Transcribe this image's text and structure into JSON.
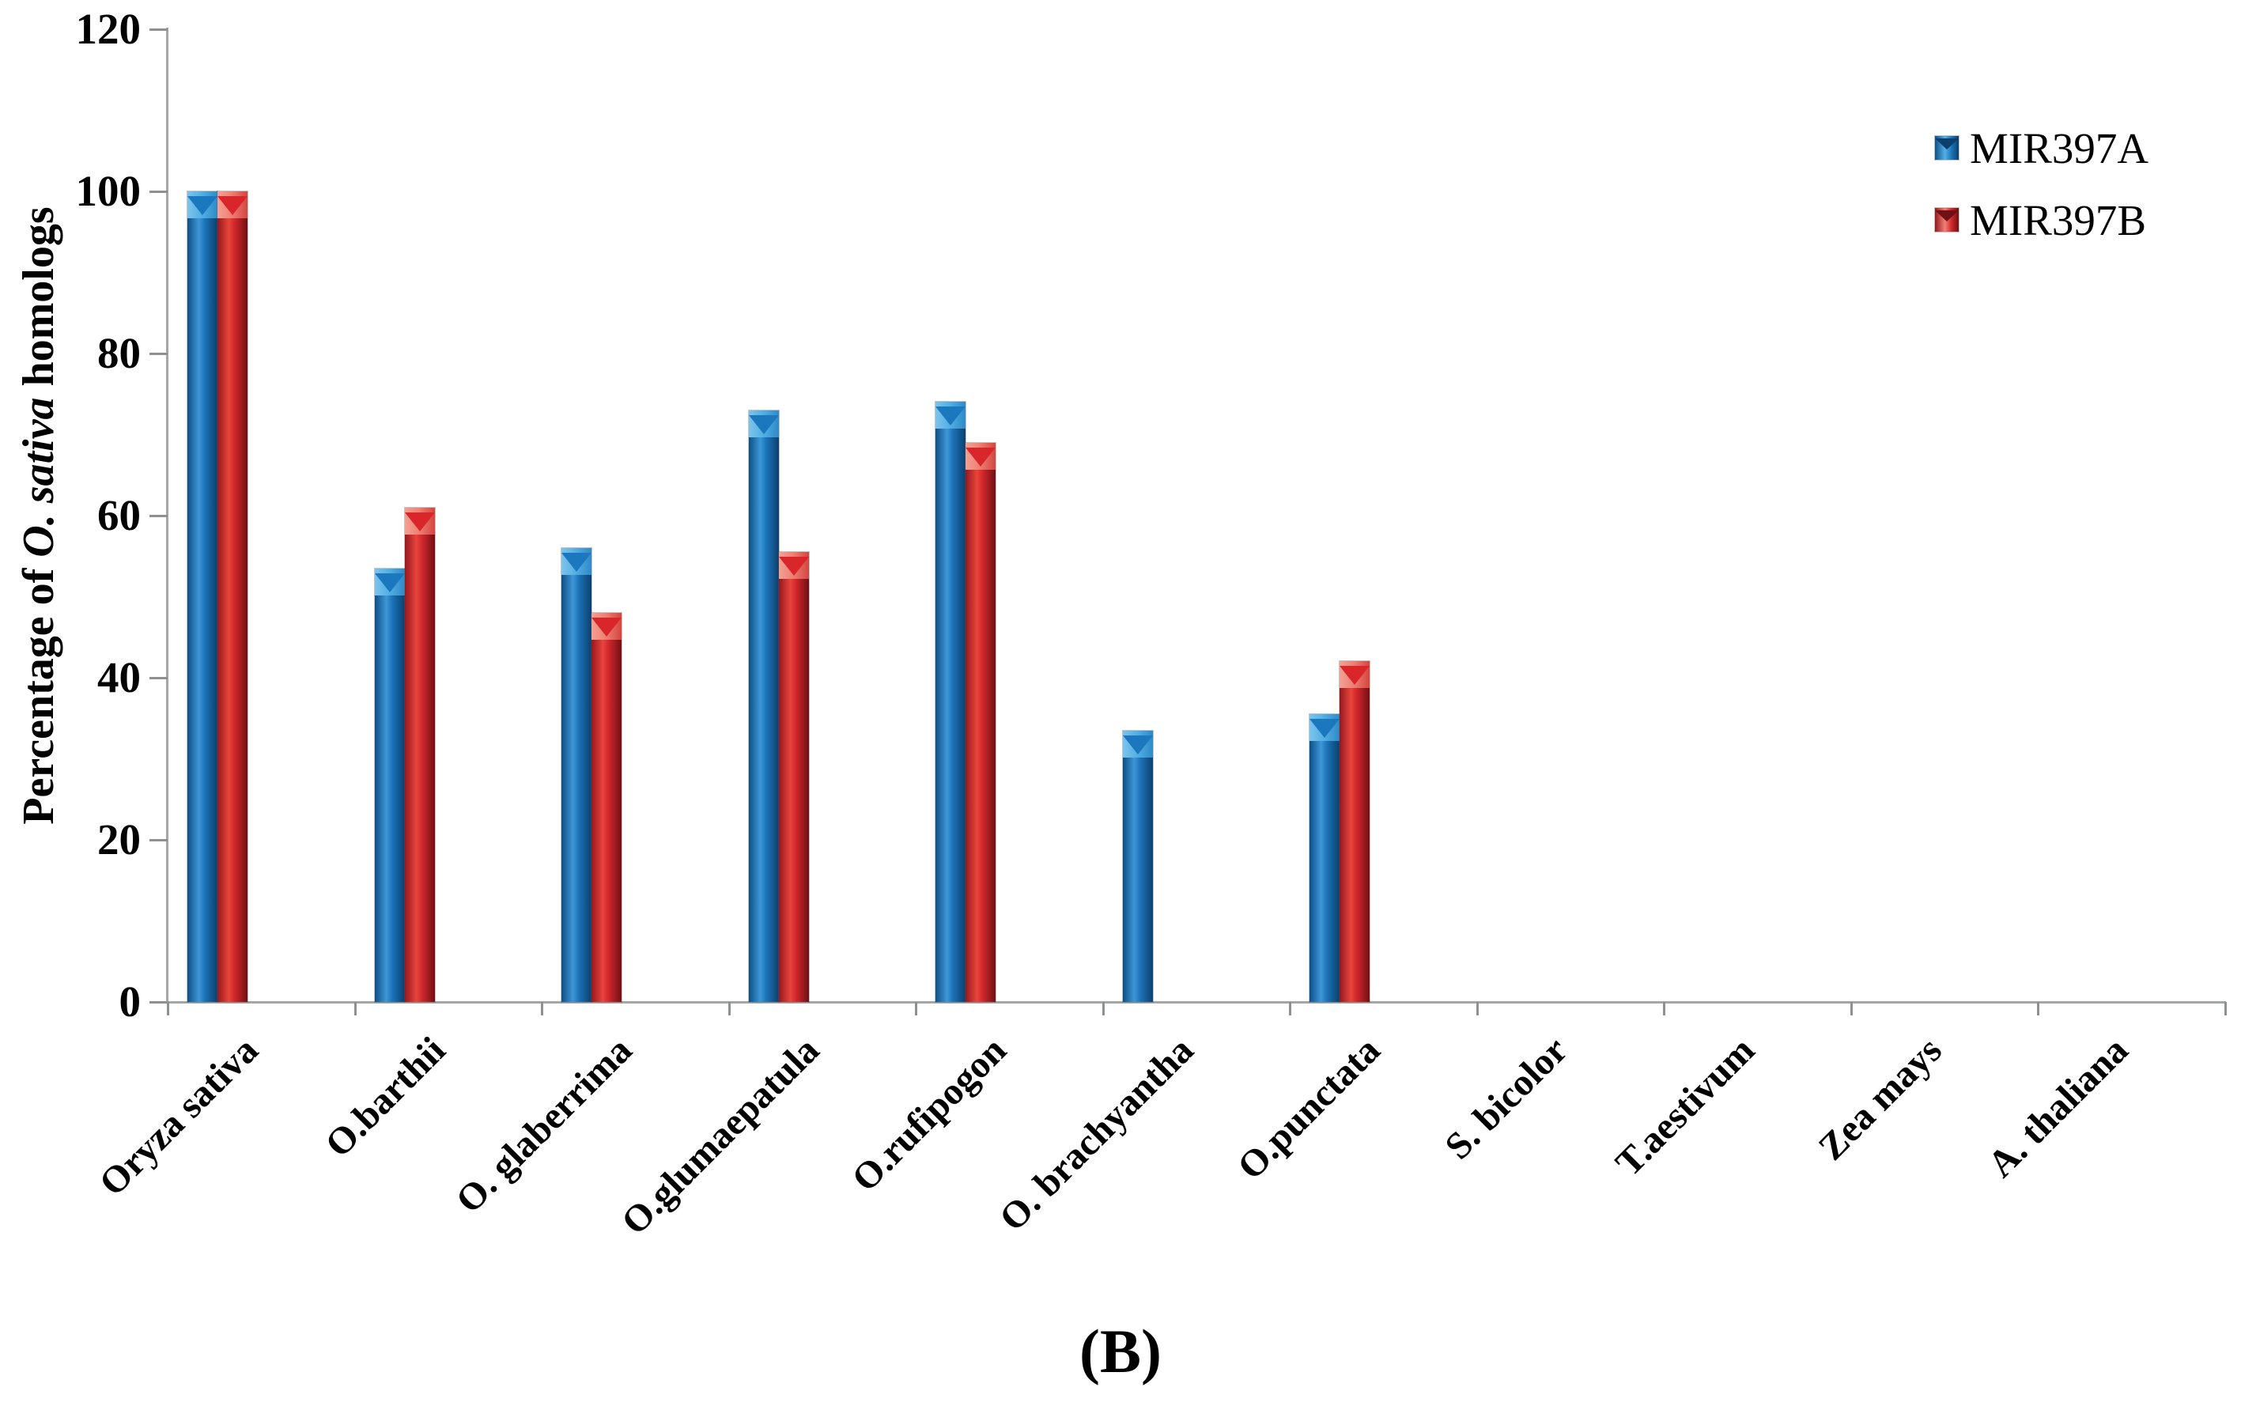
{
  "caption": "(B)",
  "chart_data": {
    "type": "bar",
    "title": "",
    "categories": [
      "Oryza sativa",
      "O.barthii",
      "O. glaberrima",
      "O.glumaepatula",
      "O.rufipogon",
      "O. brachyantha",
      "O.punctata",
      "S. bicolor",
      "T.aestivum",
      "Zea mays",
      "A. thaliana"
    ],
    "series": [
      {
        "name": "MIR397A",
        "color": "#1b75bc",
        "values": [
          100,
          53.5,
          56,
          73,
          74,
          33.5,
          35.5,
          0,
          0,
          0,
          0
        ]
      },
      {
        "name": "MIR397B",
        "color": "#d9262b",
        "values": [
          100,
          61,
          48,
          55.5,
          69,
          0,
          42,
          0,
          0,
          0,
          0
        ]
      }
    ],
    "xlabel": "",
    "ylabel": "Percentage of O. sativa homologs",
    "ylabel_parts": {
      "prefix": "Percentage of ",
      "italic": "O. sativa",
      "suffix": " homologs"
    },
    "yticks": [
      0,
      20,
      40,
      60,
      80,
      100,
      120
    ],
    "ylim": [
      0,
      120
    ],
    "grid": false,
    "legend_position": "top-right",
    "axis_color": "#a5a6a6",
    "tick_color": "#8f9090",
    "bar_styles": {
      "MIR397A": {
        "body": [
          "#0d4f88",
          "#3e97d6",
          "#1b74b8",
          "#0c3f6e"
        ],
        "cap": [
          "#7cc4ec",
          "#55b0e3",
          "#2e8ac8"
        ],
        "chevron": "#1b77be"
      },
      "MIR397B": {
        "body": [
          "#96181d",
          "#e8453b",
          "#d0262a",
          "#701014"
        ],
        "cap": [
          "#f4a095",
          "#ef8175",
          "#d4453f"
        ],
        "chevron": "#d8262a"
      }
    }
  }
}
